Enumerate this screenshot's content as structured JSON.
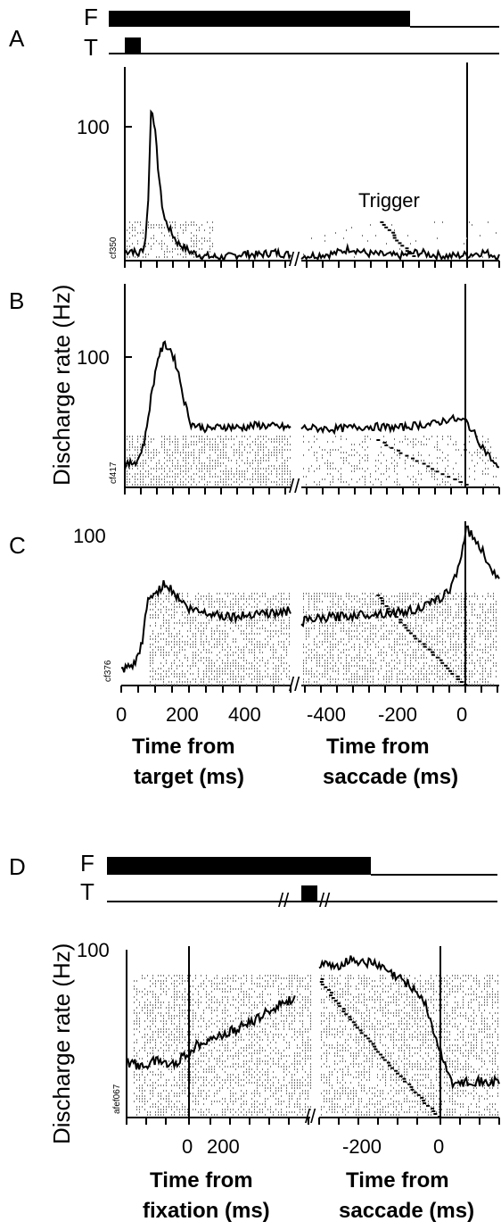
{
  "panels": [
    {
      "label": "A",
      "cell_id": "cf350",
      "event_bars": {
        "F": "F",
        "T": "T"
      },
      "annotation": "Trigger",
      "y_ticks": [
        "100"
      ],
      "series_shape": "early-burst"
    },
    {
      "label": "B",
      "cell_id": "cf417",
      "y_ticks": [
        "100"
      ],
      "series_shape": "tonic-plateau"
    },
    {
      "label": "C",
      "cell_id": "cf376",
      "y_ticks": [
        "100"
      ],
      "series_shape": "presaccadic-rise"
    },
    {
      "label": "D",
      "cell_id": "afef067",
      "event_bars": {
        "F": "F",
        "T": "T"
      },
      "y_ticks": [
        "100"
      ],
      "series_shape": "fixation-saccade"
    }
  ],
  "axes": {
    "ylabel_top": "Discharge rate (Hz)",
    "ylabel_bottom": "Discharge rate (Hz)",
    "top_x_left_ticks": [
      "0",
      "200",
      "400"
    ],
    "top_x_right_ticks": [
      "-400",
      "-200",
      "0"
    ],
    "top_xlabel_left": [
      "Time from",
      "target (ms)"
    ],
    "top_xlabel_right": [
      "Time from",
      "saccade (ms)"
    ],
    "bottom_x_left_ticks": [
      "0",
      "200"
    ],
    "bottom_x_right_ticks": [
      "-200",
      "0"
    ],
    "bottom_xlabel_left": [
      "Time from",
      "fixation (ms)"
    ],
    "bottom_xlabel_right": [
      "Time from",
      "saccade (ms)"
    ]
  },
  "chart_data": [
    {
      "type": "line",
      "title": "A",
      "ylabel": "Discharge rate (Hz)",
      "ylim": [
        0,
        130
      ],
      "yticks": [
        100
      ],
      "segments": [
        {
          "xlabel": "Time from target (ms)",
          "x": [
            0,
            20,
            40,
            60,
            70,
            80,
            90,
            100,
            110,
            120,
            140,
            160,
            200,
            240,
            300,
            360,
            400,
            450,
            500
          ],
          "values": [
            5,
            7,
            3,
            10,
            40,
            118,
            100,
            70,
            45,
            30,
            20,
            12,
            5,
            2,
            1,
            4,
            3,
            5,
            3
          ]
        },
        {
          "xlabel": "Time from saccade (ms)",
          "x": [
            -500,
            -400,
            -350,
            -300,
            -200,
            -150,
            -100,
            -50,
            0,
            50,
            100
          ],
          "values": [
            2,
            4,
            8,
            4,
            2,
            5,
            3,
            2,
            3,
            5,
            2
          ]
        }
      ]
    },
    {
      "type": "line",
      "title": "B",
      "ylabel": "Discharge rate (Hz)",
      "ylim": [
        0,
        130
      ],
      "yticks": [
        100
      ],
      "segments": [
        {
          "xlabel": "Time from target (ms)",
          "x": [
            0,
            40,
            60,
            80,
            100,
            120,
            140,
            160,
            180,
            200,
            250,
            300,
            350,
            400,
            450,
            500
          ],
          "values": [
            15,
            20,
            35,
            70,
            100,
            110,
            105,
            90,
            65,
            48,
            44,
            46,
            45,
            47,
            46,
            45
          ],
          "name": ""
        },
        {
          "xlabel": "Time from saccade (ms)",
          "x": [
            -500,
            -400,
            -300,
            -200,
            -150,
            -100,
            -50,
            0,
            50,
            100
          ],
          "values": [
            45,
            44,
            46,
            45,
            47,
            48,
            52,
            50,
            30,
            12
          ]
        }
      ]
    },
    {
      "type": "line",
      "title": "C",
      "ylabel": "Discharge rate (Hz)",
      "ylim": [
        0,
        100
      ],
      "yticks": [
        100
      ],
      "segments": [
        {
          "xlabel": "Time from target (ms)",
          "x": [
            0,
            20,
            40,
            60,
            80,
            100,
            130,
            150,
            200,
            250,
            300,
            350,
            400,
            450,
            500
          ],
          "values": [
            8,
            10,
            12,
            25,
            55,
            58,
            65,
            60,
            48,
            46,
            44,
            43,
            46,
            45,
            47
          ],
          "name": ""
        },
        {
          "xlabel": "Time from saccade (ms)",
          "x": [
            -500,
            -400,
            -300,
            -200,
            -150,
            -100,
            -50,
            -20,
            0,
            20,
            50,
            100
          ],
          "values": [
            40,
            43,
            45,
            46,
            48,
            52,
            60,
            78,
            100,
            95,
            85,
            65
          ]
        }
      ]
    },
    {
      "type": "line",
      "title": "D",
      "ylabel": "Discharge rate (Hz)",
      "ylim": [
        0,
        100
      ],
      "yticks": [
        100
      ],
      "segments": [
        {
          "xlabel": "Time from fixation (ms)",
          "x": [
            -200,
            -150,
            -100,
            -50,
            0,
            50,
            100,
            150,
            200,
            250,
            300,
            350
          ],
          "values": [
            33,
            30,
            34,
            31,
            38,
            46,
            48,
            52,
            56,
            62,
            68,
            72
          ]
        },
        {
          "xlabel": "Time from saccade (ms)",
          "x": [
            -400,
            -350,
            -300,
            -250,
            -200,
            -150,
            -100,
            -50,
            0,
            50,
            100,
            150,
            200
          ],
          "values": [
            92,
            90,
            95,
            94,
            91,
            85,
            80,
            70,
            40,
            18,
            22,
            20,
            21
          ]
        }
      ]
    }
  ]
}
